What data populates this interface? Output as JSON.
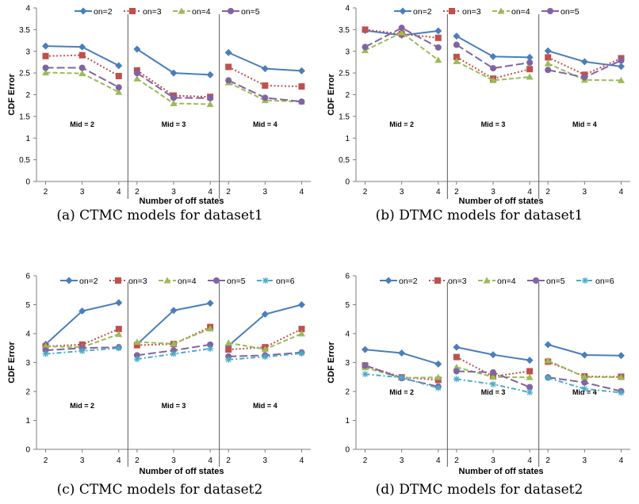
{
  "colors": {
    "on=2": "#4a7ebb",
    "on=3": "#c0504d",
    "on=4": "#9bbb59",
    "on=5": "#8064a2",
    "on=6": "#4bacc6"
  },
  "series_styles": {
    "on=2": {
      "dash": "solid",
      "marker": "diamond"
    },
    "on=3": {
      "dash": "dotted",
      "marker": "square"
    },
    "on=4": {
      "dash": "dashed",
      "marker": "triangle"
    },
    "on=5": {
      "dash": "longdash",
      "marker": "circle"
    },
    "on=6": {
      "dash": "dashdot",
      "marker": "asterisk"
    }
  },
  "chart_data": [
    {
      "type": "line",
      "caption": "(a) CTMC models for dataset1",
      "ylabel": "CDF Error",
      "xlabel": "Number of off states",
      "ylim": [
        0,
        4
      ],
      "yticks": [
        "0",
        "0.5",
        "1",
        "1.5",
        "2",
        "2.5",
        "3",
        "3.5",
        "4"
      ],
      "groups": [
        "Mid = 2",
        "Mid = 3",
        "Mid = 4"
      ],
      "x": [
        "2",
        "3",
        "4"
      ],
      "legend_position": "top",
      "series": [
        {
          "name": "on=2",
          "values": [
            [
              3.12,
              3.1,
              2.67
            ],
            [
              3.05,
              2.5,
              2.46
            ],
            [
              2.97,
              2.6,
              2.55
            ]
          ]
        },
        {
          "name": "on=3",
          "values": [
            [
              2.89,
              2.91,
              2.43
            ],
            [
              2.56,
              1.98,
              1.95
            ],
            [
              2.64,
              2.21,
              2.19
            ]
          ]
        },
        {
          "name": "on=4",
          "values": [
            [
              2.51,
              2.49,
              2.06
            ],
            [
              2.37,
              1.8,
              1.78
            ],
            [
              2.28,
              1.87,
              1.84
            ]
          ]
        },
        {
          "name": "on=5",
          "values": [
            [
              2.62,
              2.62,
              2.17
            ],
            [
              2.5,
              1.93,
              1.92
            ],
            [
              2.33,
              1.93,
              1.84
            ]
          ]
        }
      ]
    },
    {
      "type": "line",
      "caption": "(b) DTMC models for dataset1",
      "ylabel": "CDF Error",
      "xlabel": "Number of off states",
      "ylim": [
        0,
        4
      ],
      "yticks": [
        "0",
        "0.5",
        "1",
        "1.5",
        "2",
        "2.5",
        "3",
        "3.5",
        "4"
      ],
      "groups": [
        "Mid = 2",
        "Mid = 3",
        "Mid = 4"
      ],
      "x": [
        "2",
        "3",
        "4"
      ],
      "legend_position": "top",
      "series": [
        {
          "name": "on=2",
          "values": [
            [
              3.48,
              3.37,
              3.47
            ],
            [
              3.35,
              2.88,
              2.86
            ],
            [
              3.01,
              2.76,
              2.65
            ]
          ]
        },
        {
          "name": "on=3",
          "values": [
            [
              3.5,
              3.4,
              3.31
            ],
            [
              2.87,
              2.37,
              2.59
            ],
            [
              2.86,
              2.46,
              2.84
            ]
          ]
        },
        {
          "name": "on=4",
          "values": [
            [
              3.02,
              3.43,
              2.8
            ],
            [
              2.77,
              2.33,
              2.41
            ],
            [
              2.72,
              2.34,
              2.33
            ]
          ]
        },
        {
          "name": "on=5",
          "values": [
            [
              3.1,
              3.54,
              3.09
            ],
            [
              3.15,
              2.61,
              2.74
            ],
            [
              2.57,
              2.4,
              2.79
            ]
          ]
        }
      ]
    },
    {
      "type": "line",
      "caption": "(c) CTMC models for dataset2",
      "ylabel": "CDF Error",
      "xlabel": "Number of off states",
      "ylim": [
        0,
        6
      ],
      "yticks": [
        "0",
        "1",
        "2",
        "3",
        "4",
        "5",
        "6"
      ],
      "groups": [
        "Mid = 2",
        "Mid = 3",
        "Mid = 4"
      ],
      "x": [
        "2",
        "3",
        "4"
      ],
      "legend_position": "top",
      "series": [
        {
          "name": "on=2",
          "values": [
            [
              3.63,
              4.78,
              5.07
            ],
            [
              3.63,
              4.8,
              5.05
            ],
            [
              3.58,
              4.67,
              5.0
            ]
          ]
        },
        {
          "name": "on=3",
          "values": [
            [
              3.56,
              3.62,
              4.16
            ],
            [
              3.6,
              3.64,
              4.23
            ],
            [
              3.45,
              3.53,
              4.16
            ]
          ]
        },
        {
          "name": "on=4",
          "values": [
            [
              3.56,
              3.53,
              3.98
            ],
            [
              3.71,
              3.65,
              4.17
            ],
            [
              3.68,
              3.46,
              4.0
            ]
          ]
        },
        {
          "name": "on=5",
          "values": [
            [
              3.42,
              3.5,
              3.53
            ],
            [
              3.25,
              3.42,
              3.62
            ],
            [
              3.21,
              3.25,
              3.35
            ]
          ]
        },
        {
          "name": "on=6",
          "values": [
            [
              3.3,
              3.4,
              3.5
            ],
            [
              3.12,
              3.3,
              3.48
            ],
            [
              3.1,
              3.2,
              3.32
            ]
          ]
        }
      ]
    },
    {
      "type": "line",
      "caption": "(d) DTMC models for dataset2",
      "ylabel": "CDF Error",
      "xlabel": "Number of off states",
      "ylim": [
        0,
        6
      ],
      "yticks": [
        "0",
        "1",
        "2",
        "3",
        "4",
        "5",
        "6"
      ],
      "groups": [
        "Mid = 2",
        "Mid = 3",
        "Mid = 4"
      ],
      "x": [
        "2",
        "3",
        "4"
      ],
      "legend_position": "top",
      "series": [
        {
          "name": "on=2",
          "values": [
            [
              3.45,
              3.33,
              2.95
            ],
            [
              3.53,
              3.27,
              3.08
            ],
            [
              3.62,
              3.26,
              3.24
            ]
          ]
        },
        {
          "name": "on=3",
          "values": [
            [
              2.9,
              2.49,
              2.4
            ],
            [
              3.19,
              2.52,
              2.7
            ],
            [
              3.03,
              2.52,
              2.51
            ]
          ]
        },
        {
          "name": "on=4",
          "values": [
            [
              2.83,
              2.47,
              2.49
            ],
            [
              2.84,
              2.5,
              2.49
            ],
            [
              3.07,
              2.5,
              2.49
            ]
          ]
        },
        {
          "name": "on=5",
          "values": [
            [
              2.9,
              2.46,
              2.17
            ],
            [
              2.7,
              2.66,
              2.15
            ],
            [
              2.49,
              2.31,
              2.01
            ]
          ]
        },
        {
          "name": "on=6",
          "values": [
            [
              2.6,
              2.48,
              2.12
            ],
            [
              2.43,
              2.25,
              1.97
            ],
            [
              2.47,
              2.09,
              1.96
            ]
          ]
        }
      ]
    }
  ]
}
